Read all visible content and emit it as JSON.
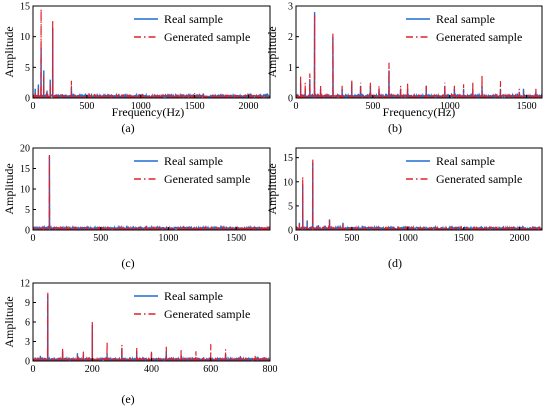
{
  "colors": {
    "real": "#1f6fd1",
    "generated": "#e0202a",
    "axis": "#000000"
  },
  "chart_data": [
    {
      "type": "line",
      "caption": "(a)",
      "xlabel": "Frequency(Hz)",
      "ylabel": "Amplitude",
      "xlim": [
        0,
        2200
      ],
      "ylim": [
        0,
        15
      ],
      "xticks": [
        0,
        500,
        1000,
        1500,
        2000
      ],
      "yticks": [
        0,
        5,
        10,
        15
      ],
      "legend_position": "top-right",
      "series": [
        {
          "name": "Real sample",
          "style": "solid",
          "peaks": [
            [
              20,
              1.5
            ],
            [
              50,
              2.2
            ],
            [
              75,
              8.2
            ],
            [
              100,
              4.5
            ],
            [
              130,
              1.2
            ],
            [
              160,
              3.0
            ],
            [
              183,
              11.5
            ],
            [
              220,
              0.6
            ],
            [
              300,
              0.4
            ],
            [
              356,
              1.8
            ],
            [
              520,
              0.5
            ],
            [
              700,
              0.4
            ],
            [
              900,
              0.5
            ],
            [
              1200,
              0.3
            ],
            [
              1500,
              0.4
            ],
            [
              1790,
              0.4
            ],
            [
              2100,
              0.3
            ]
          ]
        },
        {
          "name": "Generated sample",
          "style": "dashdot",
          "peaks": [
            [
              20,
              1.0
            ],
            [
              50,
              1.8
            ],
            [
              75,
              14.5
            ],
            [
              100,
              3.5
            ],
            [
              130,
              1.0
            ],
            [
              160,
              2.5
            ],
            [
              183,
              12.6
            ],
            [
              220,
              0.5
            ],
            [
              300,
              0.3
            ],
            [
              356,
              2.8
            ],
            [
              520,
              0.8
            ],
            [
              700,
              0.6
            ],
            [
              900,
              0.8
            ],
            [
              1200,
              0.5
            ],
            [
              1500,
              0.8
            ],
            [
              1790,
              0.8
            ],
            [
              2100,
              0.5
            ]
          ]
        }
      ]
    },
    {
      "type": "line",
      "caption": "(b)",
      "xlabel": "Frequency(Hz)",
      "ylabel": "Amplitude",
      "xlim": [
        0,
        1600
      ],
      "ylim": [
        0,
        3
      ],
      "xticks": [
        0,
        500,
        1000,
        1500
      ],
      "yticks": [
        0,
        1,
        2,
        3
      ],
      "legend_position": "top-right",
      "series": [
        {
          "name": "Real sample",
          "style": "solid",
          "peaks": [
            [
              30,
              0.5
            ],
            [
              60,
              0.3
            ],
            [
              90,
              0.6
            ],
            [
              121,
              2.8
            ],
            [
              160,
              0.3
            ],
            [
              240,
              2.0
            ],
            [
              300,
              0.3
            ],
            [
              363,
              0.5
            ],
            [
              420,
              0.4
            ],
            [
              484,
              0.4
            ],
            [
              540,
              0.3
            ],
            [
              605,
              0.9
            ],
            [
              680,
              0.3
            ],
            [
              726,
              0.3
            ],
            [
              847,
              0.4
            ],
            [
              968,
              0.4
            ],
            [
              1030,
              0.3
            ],
            [
              1090,
              0.3
            ],
            [
              1150,
              0.3
            ],
            [
              1210,
              0.4
            ],
            [
              1330,
              0.3
            ],
            [
              1452,
              0.2
            ],
            [
              1480,
              0.3
            ],
            [
              1560,
              0.2
            ]
          ]
        },
        {
          "name": "Generated sample",
          "style": "dashdot",
          "peaks": [
            [
              30,
              0.7
            ],
            [
              60,
              0.5
            ],
            [
              90,
              0.8
            ],
            [
              121,
              2.7
            ],
            [
              160,
              0.4
            ],
            [
              240,
              2.1
            ],
            [
              300,
              0.4
            ],
            [
              363,
              0.6
            ],
            [
              420,
              0.5
            ],
            [
              484,
              0.5
            ],
            [
              540,
              0.4
            ],
            [
              605,
              1.15
            ],
            [
              680,
              0.4
            ],
            [
              726,
              0.5
            ],
            [
              847,
              0.4
            ],
            [
              968,
              0.5
            ],
            [
              1030,
              0.4
            ],
            [
              1090,
              0.45
            ],
            [
              1150,
              0.5
            ],
            [
              1210,
              0.75
            ],
            [
              1330,
              0.55
            ],
            [
              1452,
              0.3
            ],
            [
              1480,
              0.2
            ],
            [
              1560,
              0.3
            ]
          ]
        }
      ]
    },
    {
      "type": "line",
      "caption": "(c)",
      "xlabel": "",
      "ylabel": "Amplitude",
      "xlim": [
        0,
        1750
      ],
      "ylim": [
        0,
        20
      ],
      "xticks": [
        0,
        500,
        1000,
        1500
      ],
      "yticks": [
        0,
        5,
        10,
        15,
        20
      ],
      "legend_position": "top-right",
      "series": [
        {
          "name": "Real sample",
          "style": "solid",
          "peaks": [
            [
              40,
              0.5
            ],
            [
              121,
              18.0
            ],
            [
              250,
              0.4
            ],
            [
              500,
              0.4
            ],
            [
              700,
              0.3
            ],
            [
              900,
              0.3
            ],
            [
              1000,
              0.4
            ],
            [
              1200,
              0.3
            ],
            [
              1400,
              0.3
            ],
            [
              1700,
              0.3
            ]
          ]
        },
        {
          "name": "Generated sample",
          "style": "dashdot",
          "peaks": [
            [
              40,
              0.6
            ],
            [
              121,
              18.3
            ],
            [
              250,
              0.6
            ],
            [
              500,
              0.7
            ],
            [
              700,
              0.5
            ],
            [
              900,
              0.4
            ],
            [
              1000,
              0.5
            ],
            [
              1200,
              0.4
            ],
            [
              1400,
              0.4
            ],
            [
              1700,
              0.5
            ]
          ]
        }
      ]
    },
    {
      "type": "line",
      "caption": "(d)",
      "xlabel": "",
      "ylabel": "Amplitude",
      "xlim": [
        0,
        2200
      ],
      "ylim": [
        0,
        17
      ],
      "xticks": [
        0,
        500,
        1000,
        1500,
        2000
      ],
      "yticks": [
        0,
        5,
        10,
        15
      ],
      "legend_position": "top-right",
      "series": [
        {
          "name": "Real sample",
          "style": "solid",
          "peaks": [
            [
              30,
              1.5
            ],
            [
              60,
              9.5
            ],
            [
              100,
              2.0
            ],
            [
              150,
              14.0
            ],
            [
              200,
              1.0
            ],
            [
              300,
              2.2
            ],
            [
              420,
              1.5
            ],
            [
              600,
              0.8
            ],
            [
              800,
              0.5
            ],
            [
              1000,
              0.4
            ],
            [
              1300,
              0.3
            ],
            [
              1600,
              0.4
            ],
            [
              2100,
              0.3
            ]
          ]
        },
        {
          "name": "Generated sample",
          "style": "dashdot",
          "peaks": [
            [
              30,
              1.2
            ],
            [
              60,
              11.0
            ],
            [
              100,
              1.5
            ],
            [
              150,
              14.6
            ],
            [
              200,
              0.8
            ],
            [
              300,
              2.0
            ],
            [
              420,
              1.2
            ],
            [
              600,
              0.6
            ],
            [
              800,
              0.8
            ],
            [
              1000,
              1.0
            ],
            [
              1300,
              0.6
            ],
            [
              1600,
              0.6
            ],
            [
              2100,
              0.5
            ]
          ]
        }
      ]
    },
    {
      "type": "line",
      "caption": "(e)",
      "xlabel": "",
      "ylabel": "Amplitude",
      "xlim": [
        0,
        800
      ],
      "ylim": [
        0,
        12
      ],
      "xticks": [
        0,
        200,
        400,
        600,
        800
      ],
      "yticks": [
        0,
        3,
        6,
        9,
        12
      ],
      "legend_position": "top-right",
      "series": [
        {
          "name": "Real sample",
          "style": "solid",
          "peaks": [
            [
              10,
              0.5
            ],
            [
              25,
              0.8
            ],
            [
              50,
              10.2
            ],
            [
              100,
              1.5
            ],
            [
              150,
              1.2
            ],
            [
              170,
              1.0
            ],
            [
              200,
              5.5
            ],
            [
              250,
              1.0
            ],
            [
              300,
              2.0
            ],
            [
              350,
              1.5
            ],
            [
              400,
              1.2
            ],
            [
              450,
              1.5
            ],
            [
              500,
              0.8
            ],
            [
              550,
              0.6
            ],
            [
              600,
              0.7
            ],
            [
              650,
              1.0
            ],
            [
              700,
              0.6
            ],
            [
              750,
              0.5
            ],
            [
              780,
              0.4
            ]
          ]
        },
        {
          "name": "Generated sample",
          "style": "dashdot",
          "peaks": [
            [
              10,
              0.4
            ],
            [
              25,
              0.6
            ],
            [
              50,
              10.5
            ],
            [
              100,
              2.0
            ],
            [
              150,
              1.0
            ],
            [
              170,
              1.6
            ],
            [
              200,
              6.0
            ],
            [
              250,
              3.0
            ],
            [
              300,
              2.5
            ],
            [
              350,
              2.0
            ],
            [
              400,
              1.5
            ],
            [
              450,
              2.2
            ],
            [
              500,
              1.8
            ],
            [
              550,
              1.5
            ],
            [
              600,
              2.6
            ],
            [
              650,
              1.8
            ],
            [
              700,
              0.8
            ],
            [
              750,
              0.9
            ],
            [
              780,
              0.6
            ]
          ]
        }
      ]
    }
  ]
}
